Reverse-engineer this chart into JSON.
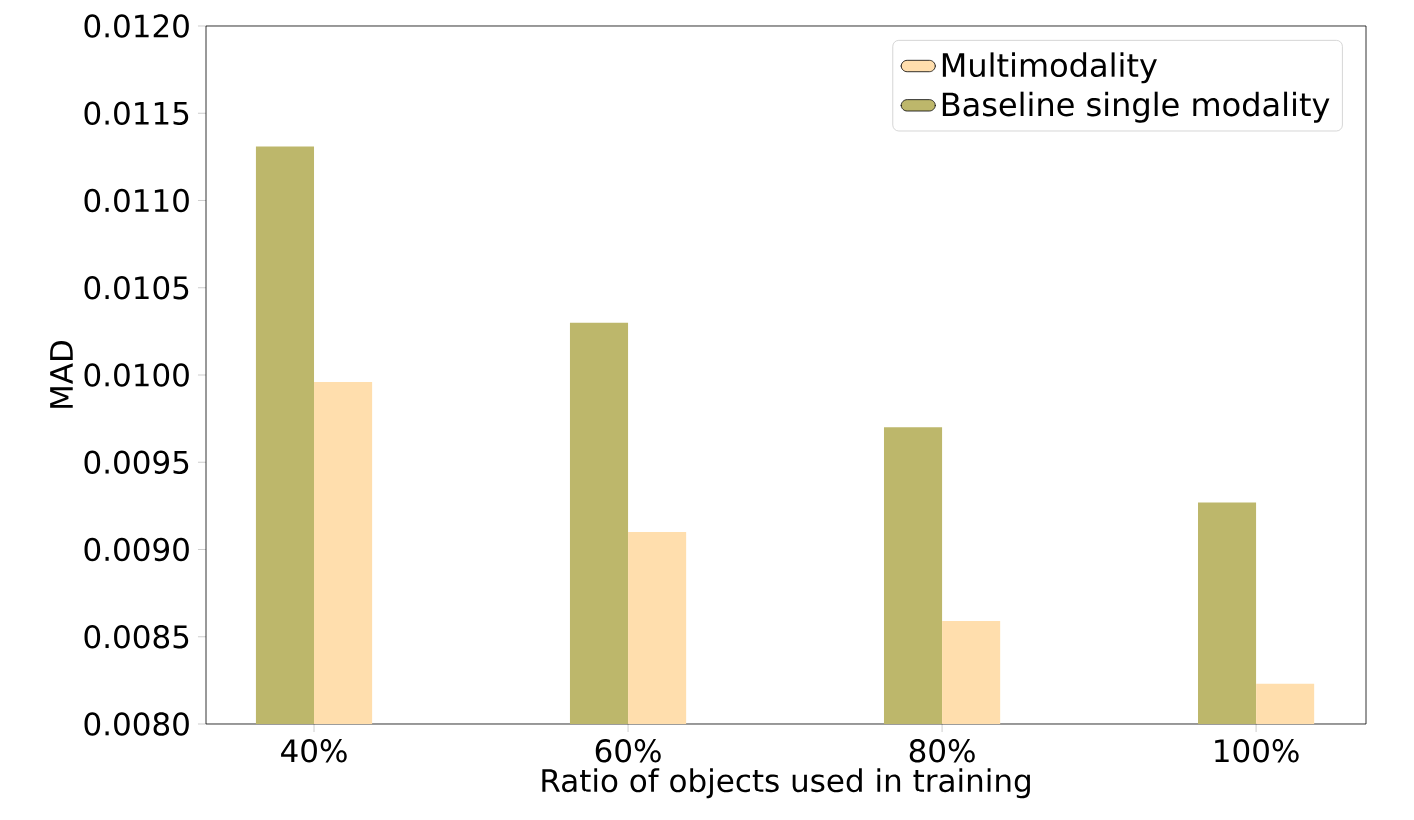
{
  "chart_data": {
    "type": "bar",
    "xlabel": "Ratio of objects used in training",
    "ylabel": "MAD",
    "categories": [
      "40%",
      "60%",
      "80%",
      "100%"
    ],
    "series": [
      {
        "name": "Baseline single modality",
        "color": "#bdb76b",
        "values": [
          0.01131,
          0.0103,
          0.0097,
          0.00927
        ]
      },
      {
        "name": "Multimodality",
        "color": "#ffdead",
        "values": [
          0.00996,
          0.0091,
          0.00859,
          0.00823
        ]
      }
    ],
    "ylim": [
      0.008,
      0.012
    ],
    "yticks": [
      {
        "value": 0.008,
        "label": "0.0080"
      },
      {
        "value": 0.0085,
        "label": "0.0085"
      },
      {
        "value": 0.009,
        "label": "0.0090"
      },
      {
        "value": 0.0095,
        "label": "0.0095"
      },
      {
        "value": 0.01,
        "label": "0.0100"
      },
      {
        "value": 0.0105,
        "label": "0.0105"
      },
      {
        "value": 0.011,
        "label": "0.0110"
      },
      {
        "value": 0.0115,
        "label": "0.0115"
      },
      {
        "value": 0.012,
        "label": "0.0120"
      }
    ],
    "legend": "top right",
    "grid": false
  }
}
